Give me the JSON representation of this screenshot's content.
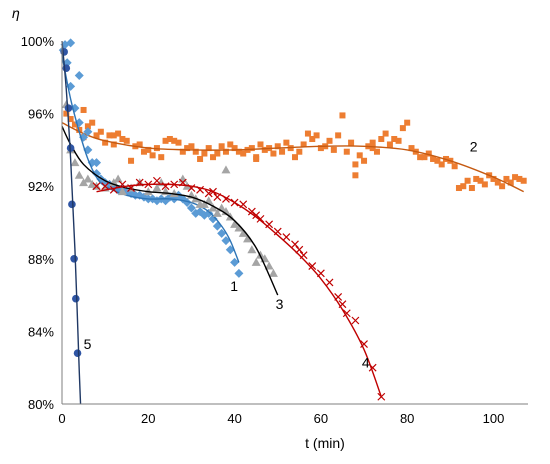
{
  "chart_data": {
    "type": "scatter",
    "xlabel": "t (min)",
    "ylabel": "η",
    "xlim": [
      0,
      108
    ],
    "ylim": [
      80,
      100
    ],
    "x_ticks": [
      0,
      20,
      40,
      60,
      80,
      100
    ],
    "y_ticks": [
      80,
      84,
      88,
      92,
      96,
      100
    ],
    "y_tick_labels": [
      "80%",
      "84%",
      "88%",
      "92%",
      "96%",
      "100%"
    ],
    "grid": false,
    "legend": "none",
    "series": [
      {
        "label": "1",
        "marker": "diamond",
        "color": "#5B9BD5",
        "fit_color": "#2E75B6",
        "label_pos": [
          39,
          86.5
        ],
        "points": [
          [
            0.3,
            99.5
          ],
          [
            0.7,
            99.8
          ],
          [
            1.2,
            98.8
          ],
          [
            2,
            97.5
          ],
          [
            3,
            96.3
          ],
          [
            4,
            95.5
          ],
          [
            5,
            94.7
          ],
          [
            6,
            94
          ],
          [
            7,
            93.3
          ],
          [
            8,
            92.7
          ],
          [
            9,
            92.4
          ],
          [
            10,
            92.2
          ],
          [
            11,
            92.1
          ],
          [
            12,
            92
          ],
          [
            13,
            91.8
          ],
          [
            14,
            91.9
          ],
          [
            15,
            91.7
          ],
          [
            16,
            91.6
          ],
          [
            17,
            91.5
          ],
          [
            18,
            91.5
          ],
          [
            19,
            91.4
          ],
          [
            20,
            91.3
          ],
          [
            21,
            91.3
          ],
          [
            22,
            91.2
          ],
          [
            23,
            91.3
          ],
          [
            24,
            91.2
          ],
          [
            25,
            91.4
          ],
          [
            26,
            91.3
          ],
          [
            27,
            91.5
          ],
          [
            28,
            91.3
          ],
          [
            29,
            91.1
          ],
          [
            30,
            90.8
          ],
          [
            31,
            90.5
          ],
          [
            32,
            90.6
          ],
          [
            33,
            90.4
          ],
          [
            34,
            90.5
          ],
          [
            35,
            90.2
          ],
          [
            36,
            89.8
          ],
          [
            37,
            89.4
          ],
          [
            38,
            89
          ],
          [
            39,
            88.5
          ],
          [
            40,
            87.8
          ],
          [
            41,
            87.2
          ],
          [
            2,
            99.9
          ],
          [
            4,
            98.1
          ],
          [
            6,
            95
          ],
          [
            8,
            93.3
          ]
        ],
        "fit": [
          [
            0,
            99.2
          ],
          [
            2,
            96.8
          ],
          [
            4,
            95
          ],
          [
            6,
            93.5
          ],
          [
            8,
            92.5
          ],
          [
            10,
            92
          ],
          [
            15,
            91.5
          ],
          [
            20,
            91.3
          ],
          [
            25,
            91.3
          ],
          [
            30,
            91.1
          ],
          [
            34,
            90.6
          ],
          [
            37,
            89.8
          ],
          [
            39,
            89
          ],
          [
            41,
            87.8
          ]
        ]
      },
      {
        "label": "2",
        "marker": "square",
        "color": "#ED7D31",
        "fit_color": "#C55A11",
        "label_pos": [
          94.5,
          94.2
        ],
        "points": [
          [
            1,
            96
          ],
          [
            2,
            95.7
          ],
          [
            3,
            95.4
          ],
          [
            4,
            95.1
          ],
          [
            5,
            94.7
          ],
          [
            6,
            95.3
          ],
          [
            7,
            95.5
          ],
          [
            8,
            94.8
          ],
          [
            9,
            95
          ],
          [
            10,
            94.4
          ],
          [
            11,
            94.8
          ],
          [
            12,
            94.3
          ],
          [
            13,
            94.9
          ],
          [
            14,
            94.6
          ],
          [
            15,
            94.5
          ],
          [
            16,
            93.4
          ],
          [
            17,
            94.2
          ],
          [
            18,
            94.3
          ],
          [
            19,
            93.9
          ],
          [
            20,
            94
          ],
          [
            21,
            93.7
          ],
          [
            22,
            94.1
          ],
          [
            23,
            93.6
          ],
          [
            24,
            94.5
          ],
          [
            25,
            94.6
          ],
          [
            26,
            94.5
          ],
          [
            27,
            94.4
          ],
          [
            28,
            93.9
          ],
          [
            29,
            94.1
          ],
          [
            30,
            94.2
          ],
          [
            31,
            93.9
          ],
          [
            32,
            93.5
          ],
          [
            33,
            93.8
          ],
          [
            34,
            94.1
          ],
          [
            35,
            93.6
          ],
          [
            36,
            93.8
          ],
          [
            37,
            94.2
          ],
          [
            38,
            93.9
          ],
          [
            39,
            94.3
          ],
          [
            40,
            94.1
          ],
          [
            41,
            93.9
          ],
          [
            42,
            93.8
          ],
          [
            43,
            94
          ],
          [
            44,
            94.1
          ],
          [
            45,
            93.6
          ],
          [
            46,
            94.3
          ],
          [
            47,
            94
          ],
          [
            48,
            94.1
          ],
          [
            49,
            93.8
          ],
          [
            50,
            94.2
          ],
          [
            51,
            93.9
          ],
          [
            52,
            94.4
          ],
          [
            53,
            94.1
          ],
          [
            54,
            93.6
          ],
          [
            55,
            93.9
          ],
          [
            56,
            94.3
          ],
          [
            57,
            94.9
          ],
          [
            58,
            94.6
          ],
          [
            59,
            94.8
          ],
          [
            60,
            94.1
          ],
          [
            61,
            94.2
          ],
          [
            62,
            94.5
          ],
          [
            63,
            94
          ],
          [
            64,
            94.8
          ],
          [
            65,
            95.9
          ],
          [
            66,
            93.9
          ],
          [
            67,
            94.4
          ],
          [
            68,
            93.2
          ],
          [
            69,
            93.7
          ],
          [
            70,
            93.4
          ],
          [
            71,
            94.2
          ],
          [
            72,
            94.1
          ],
          [
            73,
            93.9
          ],
          [
            74,
            94.6
          ],
          [
            75,
            94.9
          ],
          [
            76,
            94.3
          ],
          [
            77,
            94.6
          ],
          [
            78,
            94.5
          ],
          [
            79,
            95.2
          ],
          [
            80,
            95.5
          ],
          [
            81,
            94.1
          ],
          [
            82,
            93.9
          ],
          [
            83,
            93.6
          ],
          [
            84,
            93.6
          ],
          [
            85,
            93.8
          ],
          [
            86,
            93.5
          ],
          [
            87,
            93.4
          ],
          [
            88,
            93.2
          ],
          [
            89,
            93.5
          ],
          [
            90,
            93.4
          ],
          [
            91,
            93.1
          ],
          [
            92,
            91.9
          ],
          [
            93,
            92
          ],
          [
            94,
            92.3
          ],
          [
            95,
            91.9
          ],
          [
            96,
            92.4
          ],
          [
            97,
            92.3
          ],
          [
            98,
            92.1
          ],
          [
            99,
            92.6
          ],
          [
            100,
            92.4
          ],
          [
            101,
            92.2
          ],
          [
            102,
            92
          ],
          [
            103,
            92.4
          ],
          [
            104,
            92.2
          ],
          [
            105,
            92.5
          ],
          [
            106,
            92.4
          ],
          [
            107,
            92.3
          ],
          [
            68,
            92.6
          ],
          [
            12,
            94.8
          ],
          [
            5,
            96.2
          ],
          [
            45,
            93.5
          ],
          [
            72,
            94.4
          ]
        ],
        "fit": [
          [
            0,
            95.5
          ],
          [
            5,
            94.9
          ],
          [
            10,
            94.5
          ],
          [
            20,
            94.1
          ],
          [
            30,
            94
          ],
          [
            40,
            94
          ],
          [
            50,
            94.1
          ],
          [
            60,
            94.2
          ],
          [
            70,
            94.2
          ],
          [
            80,
            94
          ],
          [
            90,
            93.4
          ],
          [
            100,
            92.5
          ],
          [
            107,
            91.7
          ]
        ]
      },
      {
        "label": "3",
        "marker": "triangle",
        "color": "#A5A5A5",
        "fit_color": "#000000",
        "label_pos": [
          49.5,
          85.5
        ],
        "points": [
          [
            1,
            96.5
          ],
          [
            2,
            94
          ],
          [
            3,
            93.3
          ],
          [
            4,
            92.6
          ],
          [
            5,
            92.2
          ],
          [
            6,
            92.4
          ],
          [
            7,
            92.1
          ],
          [
            8,
            92
          ],
          [
            10,
            91.9
          ],
          [
            12,
            92.2
          ],
          [
            14,
            91.7
          ],
          [
            16,
            91.9
          ],
          [
            18,
            92.2
          ],
          [
            20,
            91.7
          ],
          [
            22,
            91.9
          ],
          [
            24,
            91.7
          ],
          [
            26,
            91.6
          ],
          [
            28,
            92.4
          ],
          [
            29,
            92
          ],
          [
            30,
            91.5
          ],
          [
            31,
            91.3
          ],
          [
            32,
            91
          ],
          [
            33,
            91
          ],
          [
            34,
            91.2
          ],
          [
            35,
            90.8
          ],
          [
            36,
            90.5
          ],
          [
            37,
            90.8
          ],
          [
            38,
            90.6
          ],
          [
            39,
            90.3
          ],
          [
            40,
            89.9
          ],
          [
            41,
            89.7
          ],
          [
            42,
            89.4
          ],
          [
            43,
            89.1
          ],
          [
            44,
            88.5
          ],
          [
            45,
            87.8
          ],
          [
            46,
            88.2
          ],
          [
            47,
            88
          ],
          [
            48,
            87.6
          ],
          [
            49,
            87.2
          ],
          [
            38,
            92.9
          ],
          [
            13,
            92.4
          ],
          [
            23,
            92.2
          ]
        ],
        "fit": [
          [
            0,
            95.3
          ],
          [
            2,
            94.3
          ],
          [
            5,
            93.2
          ],
          [
            10,
            92.3
          ],
          [
            15,
            91.9
          ],
          [
            20,
            91.7
          ],
          [
            25,
            91.6
          ],
          [
            30,
            91.4
          ],
          [
            35,
            90.9
          ],
          [
            40,
            90.1
          ],
          [
            45,
            88.6
          ],
          [
            50,
            86
          ]
        ]
      },
      {
        "label": "4",
        "marker": "x",
        "color": "#C00000",
        "fit_color": "#C00000",
        "label_pos": [
          69.5,
          82.3
        ],
        "points": [
          [
            8,
            92
          ],
          [
            10,
            92
          ],
          [
            12,
            91.8
          ],
          [
            14,
            92.1
          ],
          [
            16,
            91.9
          ],
          [
            18,
            92.2
          ],
          [
            20,
            92.1
          ],
          [
            22,
            92.3
          ],
          [
            24,
            92
          ],
          [
            26,
            92.1
          ],
          [
            28,
            92.2
          ],
          [
            30,
            91.9
          ],
          [
            32,
            91.8
          ],
          [
            34,
            91.6
          ],
          [
            36,
            91.4
          ],
          [
            38,
            91.3
          ],
          [
            40,
            91.1
          ],
          [
            42,
            91
          ],
          [
            44,
            90.6
          ],
          [
            46,
            90.2
          ],
          [
            48,
            89.9
          ],
          [
            50,
            89.5
          ],
          [
            52,
            89.2
          ],
          [
            54,
            88.8
          ],
          [
            56,
            88.2
          ],
          [
            58,
            87.6
          ],
          [
            60,
            87.2
          ],
          [
            62,
            86.7
          ],
          [
            64,
            85.9
          ],
          [
            66,
            85
          ],
          [
            68,
            84.6
          ],
          [
            70,
            83.3
          ],
          [
            72,
            82
          ],
          [
            74,
            80.4
          ],
          [
            35,
            91.7
          ],
          [
            45,
            90.4
          ],
          [
            55,
            88.5
          ],
          [
            65,
            85.5
          ]
        ],
        "fit": [
          [
            8,
            91.7
          ],
          [
            15,
            92
          ],
          [
            20,
            92.1
          ],
          [
            25,
            92.1
          ],
          [
            30,
            92
          ],
          [
            35,
            91.7
          ],
          [
            40,
            91.1
          ],
          [
            45,
            90.3
          ],
          [
            50,
            89.3
          ],
          [
            55,
            88.2
          ],
          [
            60,
            86.9
          ],
          [
            65,
            85.2
          ],
          [
            70,
            83
          ],
          [
            74,
            80.4
          ]
        ]
      },
      {
        "label": "5",
        "marker": "circle",
        "color": "#2F55A4",
        "fit_color": "#1F3864",
        "label_pos": [
          5,
          83.3
        ],
        "points": [
          [
            0.5,
            99.4
          ],
          [
            1,
            98.5
          ],
          [
            1.5,
            96.3
          ],
          [
            2,
            94.1
          ],
          [
            2.3,
            91
          ],
          [
            2.8,
            88
          ],
          [
            3.2,
            85.8
          ],
          [
            3.6,
            82.8
          ]
        ],
        "fit": [
          [
            0,
            100
          ],
          [
            1,
            97.3
          ],
          [
            2,
            93.5
          ],
          [
            3,
            88.5
          ],
          [
            4,
            81.8
          ],
          [
            4.3,
            80
          ]
        ]
      }
    ]
  }
}
